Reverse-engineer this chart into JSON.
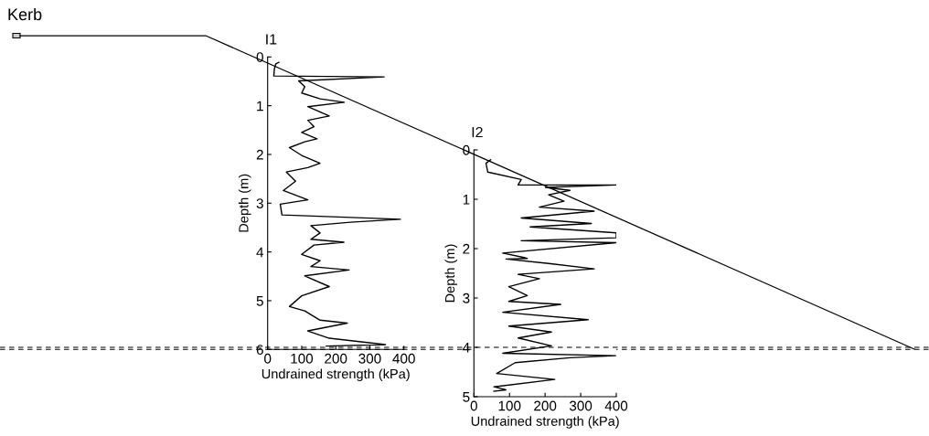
{
  "chart_data": [
    {
      "type": "line",
      "title": "I1",
      "xlabel": "Undrained strength (kPa)",
      "ylabel": "Depth (m)",
      "annotations": [
        "Kerb"
      ],
      "xlim": [
        0,
        400
      ],
      "xticks": [
        0,
        100,
        200,
        300,
        400
      ],
      "ylim": [
        6,
        0
      ],
      "yticks": [
        0,
        1,
        2,
        3,
        4,
        5,
        6
      ],
      "grid": false,
      "marker": "none",
      "line_style": "solid",
      "ref_lines": [
        {
          "axis": "y",
          "value": 6,
          "label": null,
          "color": "#000000",
          "line_style": "dashed"
        }
      ],
      "series": [
        {
          "color": "#000000",
          "x": [
            33,
            24,
            20,
            18,
            342,
            91,
            109,
            100,
            154,
            225,
            118,
            181,
            118,
            136,
            100,
            145,
            109,
            64,
            100,
            154,
            118,
            55,
            82,
            46,
            118,
            37,
            42,
            390,
            243,
            127,
            154,
            127,
            224,
            136,
            100,
            154,
            127,
            239,
            109,
            181,
            100,
            64,
            109,
            154,
            234,
            118,
            181,
            346,
            172
          ],
          "values": [
            0.11,
            0.14,
            0.24,
            0.39,
            0.41,
            0.49,
            0.61,
            0.74,
            0.86,
            0.93,
            1.02,
            1.21,
            1.3,
            1.43,
            1.55,
            1.68,
            1.74,
            1.86,
            2.02,
            2.18,
            2.27,
            2.36,
            2.55,
            2.74,
            2.93,
            3.02,
            3.24,
            3.33,
            3.39,
            3.46,
            3.61,
            3.74,
            3.8,
            3.86,
            4.05,
            4.18,
            4.3,
            4.37,
            4.49,
            4.71,
            4.9,
            5.12,
            5.21,
            5.4,
            5.46,
            5.62,
            5.77,
            5.9,
            5.93
          ]
        }
      ]
    },
    {
      "type": "line",
      "title": "I2",
      "xlabel": "Undrained strength (kPa)",
      "ylabel": "Depth (m)",
      "xlim": [
        0,
        400
      ],
      "xticks": [
        0,
        100,
        200,
        300,
        400
      ],
      "ylim": [
        5,
        0
      ],
      "yticks": [
        0,
        1,
        2,
        3,
        4,
        5
      ],
      "grid": false,
      "marker": "none",
      "line_style": "solid",
      "ref_lines": [
        {
          "axis": "y",
          "value": 4,
          "label": null,
          "color": "#000000",
          "line_style": "dashed"
        }
      ],
      "series": [
        {
          "color": "#000000",
          "x": [
            47,
            34,
            39,
            133,
            124,
            400,
            201,
            270,
            210,
            253,
            184,
            338,
            133,
            330,
            158,
            400,
            400,
            133,
            400,
            81,
            141,
            150,
            90,
            210,
            338,
            124,
            184,
            98,
            150,
            98,
            244,
            81,
            321,
            98,
            218,
            124,
            218,
            81,
            398,
            270,
            116,
            64,
            227,
            56,
            90,
            56
          ],
          "values": [
            0.2,
            0.27,
            0.45,
            0.6,
            0.71,
            0.71,
            0.76,
            0.82,
            0.91,
            1.04,
            1.16,
            1.24,
            1.38,
            1.49,
            1.56,
            1.68,
            1.78,
            1.84,
            1.88,
            2.09,
            2.18,
            2.2,
            2.21,
            2.3,
            2.41,
            2.52,
            2.61,
            2.77,
            2.95,
            3.07,
            3.13,
            3.29,
            3.44,
            3.57,
            3.69,
            3.81,
            3.97,
            4.12,
            4.17,
            4.21,
            4.31,
            4.53,
            4.65,
            4.8,
            4.86,
            4.89
          ]
        }
      ]
    }
  ]
}
